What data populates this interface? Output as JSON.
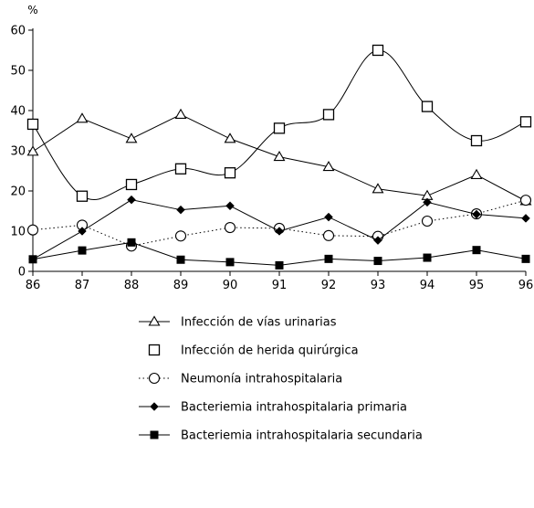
{
  "chart_data": {
    "type": "line",
    "title": "",
    "xlabel": "",
    "ylabel": "",
    "y_unit": "%",
    "categories": [
      "86",
      "87",
      "88",
      "89",
      "90",
      "91",
      "92",
      "93",
      "94",
      "95",
      "96"
    ],
    "ylim": [
      0,
      60
    ],
    "yticks": [
      0,
      10,
      20,
      30,
      40,
      50,
      60
    ],
    "grid": false,
    "legend_position": "bottom",
    "series": [
      {
        "name": "Infección de vías urinarias",
        "marker": "open-triangle",
        "line": "solid",
        "smooth": false,
        "values": [
          29.8,
          38,
          33,
          39,
          33,
          28.5,
          26,
          20.5,
          18.8,
          24,
          17.5
        ]
      },
      {
        "name": "Infección de herida quirúrgica",
        "marker": "open-square",
        "line": "solid",
        "smooth": true,
        "values": [
          36.6,
          18.7,
          21.6,
          25.5,
          24.5,
          35.6,
          39,
          55,
          41,
          32.5,
          37.2
        ]
      },
      {
        "name": "Neumonía intrahospitalaria",
        "marker": "open-circle",
        "line": "dotted",
        "smooth": false,
        "values": [
          10.3,
          11.5,
          6.3,
          8.8,
          10.9,
          10.7,
          8.9,
          8.7,
          12.5,
          14.3,
          17.7
        ]
      },
      {
        "name": "Bacteriemia intrahospitalaria primaria",
        "marker": "filled-diamond",
        "line": "solid",
        "smooth": false,
        "values": [
          3,
          10,
          17.8,
          15.3,
          16.3,
          10,
          13.5,
          7.7,
          17.2,
          14.2,
          13.2
        ]
      },
      {
        "name": "Bacteriemia intrahospitalaria secundaria",
        "marker": "filled-square",
        "line": "solid",
        "smooth": false,
        "values": [
          3,
          5.2,
          7.2,
          2.9,
          2.3,
          1.5,
          3.1,
          2.6,
          3.4,
          5.3,
          3.1
        ]
      }
    ]
  }
}
